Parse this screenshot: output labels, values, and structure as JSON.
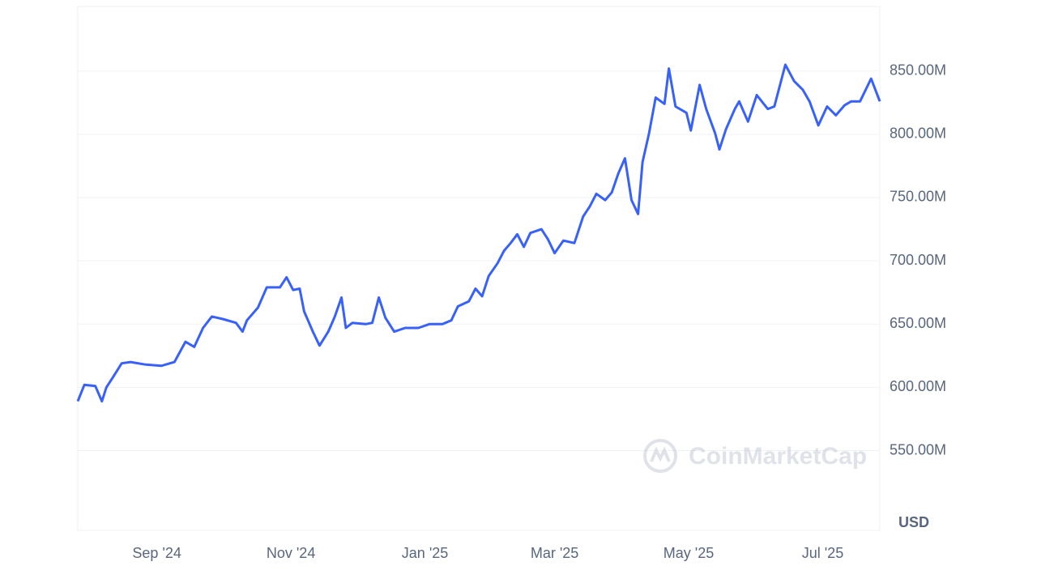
{
  "chart_data": {
    "type": "line",
    "y_label": "USD",
    "watermark": "CoinMarketCap",
    "xlim": [
      0,
      365
    ],
    "xticks": [
      {
        "value": 36,
        "label": "Sep '24"
      },
      {
        "value": 97,
        "label": "Nov '24"
      },
      {
        "value": 158,
        "label": "Jan '25"
      },
      {
        "value": 217,
        "label": "Mar '25"
      },
      {
        "value": 278,
        "label": "May '25"
      },
      {
        "value": 339,
        "label": "Jul '25"
      }
    ],
    "ylim": [
      487,
      901
    ],
    "yticks": [
      {
        "value": 550,
        "label": "550.00M"
      },
      {
        "value": 600,
        "label": "600.00M"
      },
      {
        "value": 650,
        "label": "650.00M"
      },
      {
        "value": 700,
        "label": "700.00M"
      },
      {
        "value": 750,
        "label": "750.00M"
      },
      {
        "value": 800,
        "label": "800.00M"
      },
      {
        "value": 850,
        "label": "850.00M"
      }
    ],
    "grid": true,
    "x": [
      0,
      3,
      8,
      11,
      13,
      16,
      20,
      24,
      31,
      38,
      44,
      49,
      53,
      57,
      61,
      66,
      72,
      75,
      77,
      82,
      86,
      92,
      95,
      98,
      101,
      103,
      107,
      110,
      114,
      117,
      120,
      122,
      125,
      131,
      134,
      137,
      140,
      144,
      149,
      155,
      160,
      166,
      170,
      173,
      178,
      181,
      184,
      187,
      191,
      194,
      197,
      200,
      203,
      206,
      211,
      214,
      217,
      221,
      226,
      230,
      233,
      236,
      240,
      243,
      246,
      249,
      252,
      255,
      257,
      260,
      263,
      267,
      269,
      272,
      277,
      279,
      283,
      286,
      290,
      292,
      295,
      299,
      301,
      305,
      309,
      314,
      317,
      322,
      326,
      330,
      333,
      337,
      341,
      345,
      349,
      352,
      356,
      361,
      365
    ],
    "series": [
      {
        "color": "#3861fb",
        "values": [
          589,
          602,
          601,
          589,
          600,
          608,
          619,
          620,
          618,
          617,
          620,
          636,
          632,
          647,
          656,
          654,
          651,
          644,
          653,
          663,
          679,
          679,
          687,
          677,
          678,
          660,
          644,
          633,
          644,
          656,
          671,
          647,
          651,
          650,
          651,
          671,
          655,
          644,
          647,
          647,
          650,
          650,
          653,
          664,
          668,
          678,
          672,
          688,
          698,
          708,
          714,
          721,
          711,
          722,
          725,
          717,
          706,
          716,
          714,
          735,
          743,
          753,
          748,
          754,
          769,
          781,
          748,
          737,
          778,
          801,
          829,
          824,
          852,
          822,
          817,
          803,
          839,
          820,
          801,
          788,
          804,
          820,
          826,
          810,
          831,
          820,
          822,
          855,
          842,
          835,
          826,
          807,
          822,
          815,
          823,
          826,
          826,
          844,
          826
        ]
      }
    ]
  }
}
